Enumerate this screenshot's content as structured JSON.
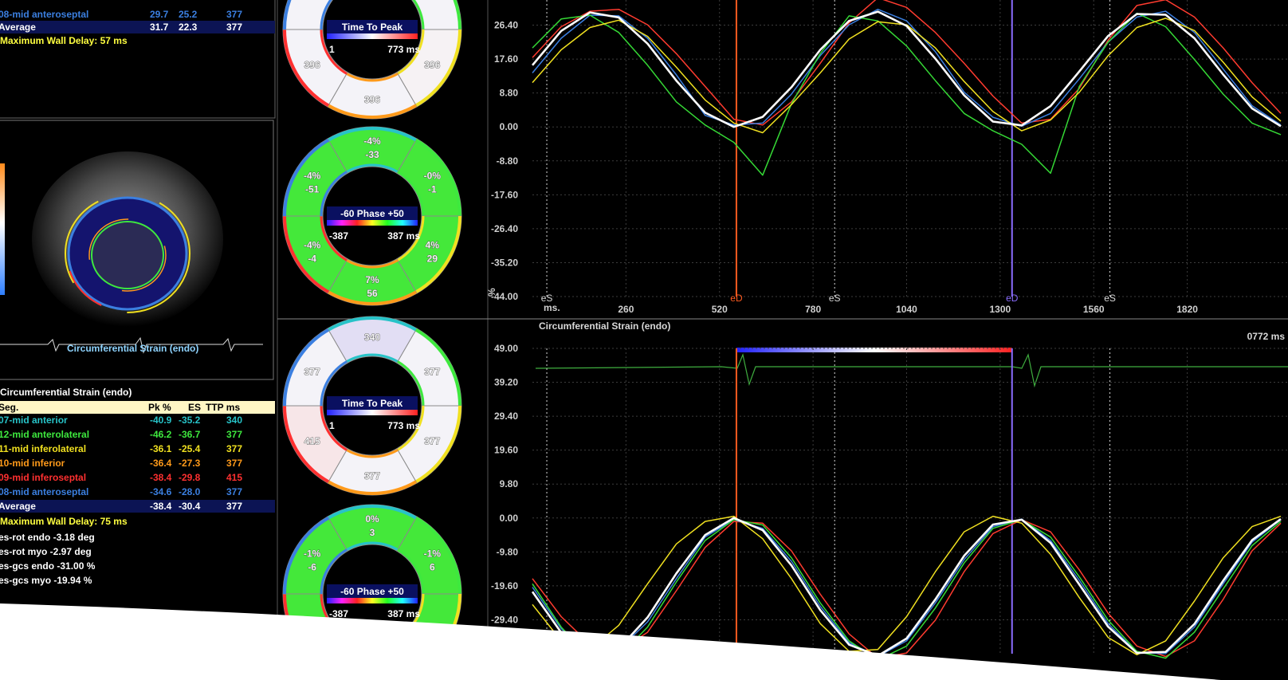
{
  "top_table": {
    "rows": [
      {
        "seg": "08-mid anteroseptal",
        "pk": "29.7",
        "es": "25.2",
        "ttp": "377",
        "color": "#3b7fe0"
      }
    ],
    "average": {
      "seg": "Average",
      "pk": "31.7",
      "es": "22.3",
      "ttp": "377"
    },
    "max_delay": "Maximum Wall Delay: 57 ms"
  },
  "echo": {
    "label": "Circumferential Strain (endo)"
  },
  "strain_table": {
    "title": "Circumferential Strain (endo)",
    "headers": [
      "Seg.",
      "Pk %",
      "ES",
      "TTP ms"
    ],
    "rows": [
      {
        "seg": "07-mid anterior",
        "pk": "-40.9",
        "es": "-35.2",
        "ttp": "340",
        "color": "#27c3c8"
      },
      {
        "seg": "12-mid anterolateral",
        "pk": "-46.2",
        "es": "-36.7",
        "ttp": "377",
        "color": "#3ee83e"
      },
      {
        "seg": "11-mid inferolateral",
        "pk": "-36.1",
        "es": "-25.4",
        "ttp": "377",
        "color": "#f0e020"
      },
      {
        "seg": "10-mid inferior",
        "pk": "-36.4",
        "es": "-27.3",
        "ttp": "377",
        "color": "#ff9a1a"
      },
      {
        "seg": "09-mid inferoseptal",
        "pk": "-38.4",
        "es": "-29.8",
        "ttp": "415",
        "color": "#ff3030"
      },
      {
        "seg": "08-mid anteroseptal",
        "pk": "-34.6",
        "es": "-28.0",
        "ttp": "377",
        "color": "#3b7fe0"
      }
    ],
    "average": {
      "seg": "Average",
      "pk": "-38.4",
      "es": "-30.4",
      "ttp": "377"
    },
    "max_delay": "Maximum Wall Delay: 75 ms",
    "notes": [
      "es-rot endo -3.18 deg",
      "es-rot myo -2.97 deg",
      "es-gcs endo -31.00 %",
      "es-gcs myo -19.94 %"
    ]
  },
  "bullseyes": [
    {
      "title": "Time To Peak",
      "min": "1",
      "max": "773 ms",
      "colorbar": [
        "#2020ff",
        "#ffffff",
        "#ff2020"
      ],
      "segments": [
        {
          "fill": "#f4f3f8",
          "label": null
        },
        {
          "fill": "#f4f3f8",
          "label": null
        },
        {
          "fill": "#f6f2f4",
          "label": "396"
        },
        {
          "fill": "#f4f3f8",
          "label": "396"
        },
        {
          "fill": "#f4f3f8",
          "label": "396"
        },
        {
          "fill": "#f4f3f8",
          "label": null
        }
      ]
    },
    {
      "title": "-60 Phase +50",
      "min": "-387",
      "max": "387 ms",
      "colorbar": [
        "#2020ff",
        "#ff20ff",
        "#ff2020",
        "#ffff20",
        "#20ff20",
        "#20ffff",
        "#2020ff"
      ],
      "segments": [
        {
          "fill": "#44e83a",
          "label": "-4%",
          "sub": "-33"
        },
        {
          "fill": "#44e83a",
          "label": "-0%",
          "sub": "-1"
        },
        {
          "fill": "#44e83a",
          "label": "4%",
          "sub": "29"
        },
        {
          "fill": "#44e83a",
          "label": "7%",
          "sub": "56"
        },
        {
          "fill": "#44e83a",
          "label": "-4%",
          "sub": "-4"
        },
        {
          "fill": "#44e83a",
          "label": "-4%",
          "sub": "-51"
        }
      ]
    },
    {
      "title": "Time To Peak",
      "min": "1",
      "max": "773 ms",
      "colorbar": [
        "#2020ff",
        "#ffffff",
        "#ff2020"
      ],
      "segments": [
        {
          "fill": "#e2def4",
          "label": "340"
        },
        {
          "fill": "#f4f3f8",
          "label": "377"
        },
        {
          "fill": "#f4f3f8",
          "label": "377"
        },
        {
          "fill": "#f4f3f8",
          "label": "377"
        },
        {
          "fill": "#f7e6e8",
          "label": "415"
        },
        {
          "fill": "#f4f3f8",
          "label": "377"
        }
      ]
    },
    {
      "title": "-60 Phase +50",
      "min": "-387",
      "max": "387 ms",
      "colorbar": [
        "#2020ff",
        "#ff20ff",
        "#ff2020",
        "#ffff20",
        "#20ff20",
        "#20ffff",
        "#2020ff"
      ],
      "segments": [
        {
          "fill": "#44e83a",
          "label": "0%",
          "sub": "3"
        },
        {
          "fill": "#44e83a",
          "label": "-1%",
          "sub": "6"
        },
        {
          "fill": "#44e83a",
          "label": null
        },
        {
          "fill": "#44e83a",
          "label": null
        },
        {
          "fill": "#44e83a",
          "label": null
        },
        {
          "fill": "#44e83a",
          "label": "-1%",
          "sub": "-6"
        }
      ]
    }
  ],
  "chart_data": [
    {
      "type": "line",
      "ylabel": "%",
      "xlabel": "ms.",
      "x": [
        0,
        80,
        160,
        240,
        320,
        400,
        480,
        560,
        640,
        720,
        800,
        880,
        960,
        1040,
        1120,
        1200,
        1280,
        1360,
        1440,
        1520,
        1600,
        1680,
        1760,
        1840,
        1920,
        2000,
        2080
      ],
      "xlim": [
        0,
        2100
      ],
      "ylim": [
        -44,
        35.2
      ],
      "yticks": [
        {
          "value": 26.4,
          "label": "26.40"
        },
        {
          "value": 17.6,
          "label": "17.60"
        },
        {
          "value": 8.8,
          "label": "8.80"
        },
        {
          "value": 0,
          "label": "0.00"
        },
        {
          "value": -8.8,
          "label": "-8.80"
        },
        {
          "value": -17.6,
          "label": "-17.60"
        },
        {
          "value": -26.4,
          "label": "-26.40"
        },
        {
          "value": -35.2,
          "label": "-35.20"
        },
        {
          "value": -44,
          "label": "-44.00"
        }
      ],
      "xticks": [
        260,
        520,
        780,
        1040,
        1300,
        1560,
        1820
      ],
      "grid": true,
      "markers": [
        {
          "label": "eS",
          "x": 40,
          "color": "#d8d8d8",
          "dashed": true
        },
        {
          "label": "eD",
          "x": 567,
          "color": "#ff5a1f",
          "dashed": false
        },
        {
          "label": "eS",
          "x": 840,
          "color": "#d8d8d8",
          "dashed": true
        },
        {
          "label": "eD",
          "x": 1333,
          "color": "#8a6cff",
          "dashed": false
        },
        {
          "label": "eS",
          "x": 1605,
          "color": "#d8d8d8",
          "dashed": true
        }
      ],
      "series": [
        {
          "color": "#ff3b2f",
          "values": [
            18.0,
            26.0,
            30.0,
            30.5,
            26.5,
            19.0,
            10.5,
            2.0,
            0.5,
            6.5,
            16.5,
            27.0,
            33.5,
            31.0,
            24.5,
            16.5,
            8.0,
            1.0,
            2.0,
            10.0,
            22.5,
            31.5,
            33.0,
            28.5,
            20.5,
            11.5,
            3.5
          ]
        },
        {
          "color": "#3b7fe0",
          "values": [
            14.0,
            23.0,
            29.0,
            28.8,
            23.0,
            13.5,
            3.0,
            0.5,
            1.0,
            8.5,
            18.5,
            26.5,
            30.5,
            27.5,
            19.5,
            9.0,
            2.5,
            0.2,
            3.5,
            12.5,
            22.0,
            28.5,
            30.0,
            24.5,
            15.0,
            5.5,
            0.5
          ]
        },
        {
          "color": "#35d835",
          "values": [
            20.5,
            28.0,
            29.0,
            24.5,
            16.0,
            6.5,
            0.5,
            -4.0,
            -12.5,
            6.0,
            19.0,
            28.8,
            27.5,
            21.0,
            12.0,
            3.5,
            -1.0,
            -4.5,
            -12.0,
            10.5,
            22.0,
            29.5,
            26.0,
            17.5,
            8.5,
            1.0,
            -2.0
          ]
        },
        {
          "color": "#f0e020",
          "values": [
            11.5,
            20.0,
            25.8,
            27.7,
            23.5,
            15.5,
            7.0,
            1.0,
            -1.5,
            5.8,
            14.0,
            22.8,
            27.3,
            26.5,
            20.5,
            11.8,
            4.0,
            -1.0,
            1.8,
            9.0,
            18.5,
            25.8,
            28.2,
            25.0,
            16.8,
            7.8,
            1.5
          ]
        },
        {
          "color": "#ffffff",
          "values": [
            16.0,
            24.9,
            29.7,
            28.4,
            21.6,
            12.0,
            3.7,
            0.0,
            2.6,
            10.3,
            20.0,
            27.5,
            29.9,
            26.2,
            17.7,
            8.2,
            1.4,
            0.4,
            5.4,
            14.4,
            23.6,
            29.3,
            29.1,
            23.0,
            13.6,
            4.8,
            0.2
          ]
        }
      ]
    },
    {
      "type": "line",
      "title": "Circumferential Strain (endo)",
      "time_label": "0772 ms",
      "x": [
        0,
        80,
        160,
        240,
        320,
        400,
        480,
        560,
        640,
        720,
        800,
        880,
        960,
        1040,
        1120,
        1200,
        1280,
        1360,
        1440,
        1520,
        1600,
        1680,
        1760,
        1840,
        1920,
        2000,
        2080
      ],
      "xlim": [
        0,
        2100
      ],
      "ylim": [
        -39.2,
        49
      ],
      "yticks": [
        {
          "value": 49,
          "label": "49.00"
        },
        {
          "value": 39.2,
          "label": "39.20"
        },
        {
          "value": 29.4,
          "label": "29.40"
        },
        {
          "value": 19.6,
          "label": "19.60"
        },
        {
          "value": 9.8,
          "label": "9.80"
        },
        {
          "value": 0,
          "label": "0.00"
        },
        {
          "value": -9.8,
          "label": "-9.80"
        },
        {
          "value": -19.6,
          "label": "-19.60"
        },
        {
          "value": -29.4,
          "label": "-29.40"
        }
      ],
      "xgrid": [
        260,
        520,
        780,
        1040,
        1300,
        1560,
        1820
      ],
      "grid": true,
      "markers": [
        {
          "x": 40,
          "color": "#d8d8d8",
          "dashed": true
        },
        {
          "x": 567,
          "color": "#ff5a1f",
          "dashed": false
        },
        {
          "x": 840,
          "color": "#d8d8d8",
          "dashed": true
        },
        {
          "x": 1333,
          "color": "#8a6cff",
          "dashed": false
        },
        {
          "x": 1605,
          "color": "#d8d8d8",
          "dashed": true
        }
      ],
      "series": [
        {
          "color": "#ff3b2f",
          "values": [
            -17.5,
            -28.5,
            -36.5,
            -38.5,
            -33.0,
            -21.0,
            -8.5,
            -1.0,
            -1.5,
            -9.5,
            -22.0,
            -33.5,
            -40.5,
            -39.0,
            -29.5,
            -15.5,
            -4.5,
            -0.5,
            -4.0,
            -15.0,
            -27.5,
            -37.0,
            -40.0,
            -35.5,
            -23.5,
            -9.5,
            -1.5
          ]
        },
        {
          "color": "#3b7fe0",
          "values": [
            -20.0,
            -32.0,
            -38.5,
            -38.0,
            -30.0,
            -17.5,
            -5.5,
            -0.5,
            -3.0,
            -12.5,
            -25.5,
            -36.0,
            -40.0,
            -35.5,
            -24.5,
            -12.0,
            -2.5,
            -0.3,
            -6.5,
            -18.0,
            -30.5,
            -38.8,
            -39.2,
            -31.5,
            -19.0,
            -7.0,
            -0.5
          ]
        },
        {
          "color": "#35d835",
          "values": [
            -19.0,
            -31.5,
            -40.5,
            -40.0,
            -31.5,
            -18.5,
            -6.5,
            -0.5,
            -2.0,
            -11.5,
            -24.5,
            -35.5,
            -41.0,
            -37.0,
            -26.0,
            -13.0,
            -3.0,
            -0.5,
            -5.5,
            -17.0,
            -29.5,
            -38.5,
            -40.5,
            -33.0,
            -20.5,
            -8.0,
            -1.0
          ]
        },
        {
          "color": "#f0e020",
          "values": [
            -25.0,
            -35.5,
            -38.0,
            -31.0,
            -19.0,
            -7.5,
            -1.0,
            0.5,
            -6.0,
            -17.5,
            -30.5,
            -38.5,
            -38.0,
            -28.5,
            -15.5,
            -4.0,
            0.5,
            -1.5,
            -10.5,
            -23.0,
            -34.5,
            -39.5,
            -35.5,
            -24.0,
            -11.5,
            -2.5,
            0.5
          ]
        },
        {
          "color": "#ffffff",
          "values": [
            -21.3,
            -33.1,
            -39.5,
            -37.8,
            -28.7,
            -16.0,
            -4.9,
            0.0,
            -3.5,
            -13.7,
            -26.6,
            -36.6,
            -39.8,
            -34.8,
            -23.5,
            -10.9,
            -1.9,
            -0.5,
            -7.2,
            -19.2,
            -31.4,
            -39.0,
            -38.7,
            -30.6,
            -18.1,
            -6.4,
            -0.3
          ]
        }
      ]
    }
  ]
}
